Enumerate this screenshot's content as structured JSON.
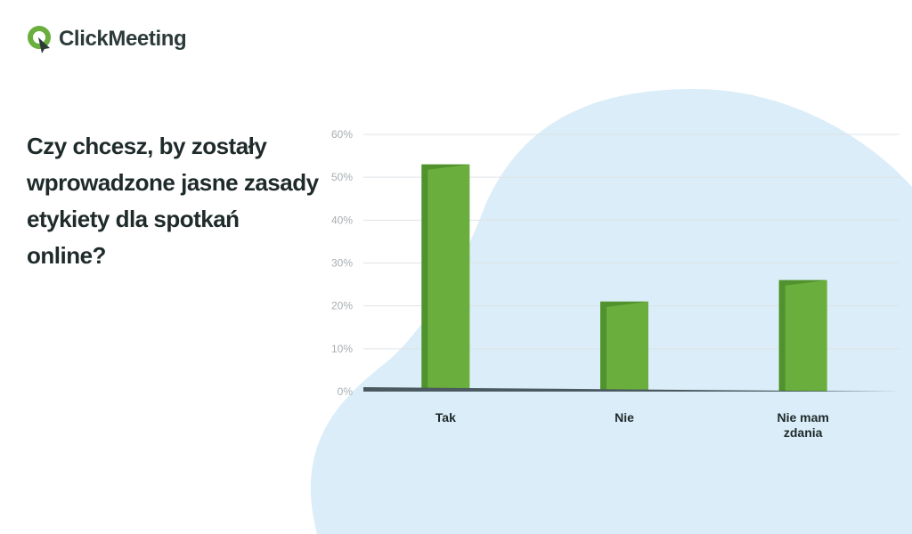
{
  "brand": {
    "name": "ClickMeeting",
    "logo_icon": "clickmeeting-q-icon",
    "colors": {
      "accent": "#6aaf3d",
      "dark": "#2d3a3a"
    }
  },
  "question": "Czy chcesz, by zostały wprowadzone jasne zasady etykiety dla spotkań online?",
  "chart_data": {
    "type": "bar",
    "categories": [
      [
        "Tak"
      ],
      [
        "Nie"
      ],
      [
        "Nie mam",
        "zdania"
      ]
    ],
    "values": [
      53,
      21,
      26
    ],
    "unit": "%",
    "ylim": [
      0,
      60
    ],
    "yticks": [
      0,
      10,
      20,
      30,
      40,
      50,
      60
    ],
    "grid": true,
    "legend": "none",
    "colors": {
      "bar": "#6aaf3d",
      "bar_shadow": "#4e8f2c",
      "grid": "#dfe3e6",
      "baseline": "#4a5a60",
      "background_blob": "#daedf8"
    }
  }
}
